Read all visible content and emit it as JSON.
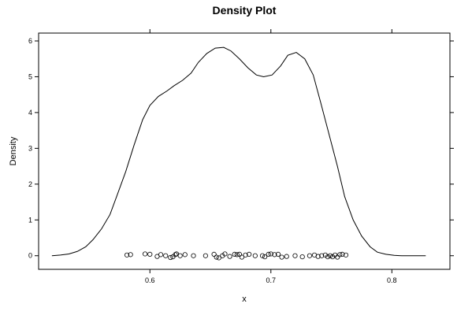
{
  "chart_data": {
    "type": "line",
    "title": "Density Plot",
    "xlabel": "x",
    "ylabel": "Density",
    "xlim": [
      0.508,
      0.848
    ],
    "ylim": [
      -0.38,
      6.22
    ],
    "x_ticks": [
      0.6,
      0.7,
      0.8
    ],
    "x_tick_labels": [
      "0.6",
      "0.7",
      "0.8"
    ],
    "y_ticks": [
      0,
      1,
      2,
      3,
      4,
      5,
      6
    ],
    "y_tick_labels": [
      "0",
      "1",
      "2",
      "3",
      "4",
      "5",
      "6"
    ],
    "grid": false,
    "series": [
      {
        "kind": "density-line",
        "x": [
          0.519,
          0.526,
          0.533,
          0.54,
          0.547,
          0.553,
          0.56,
          0.567,
          0.573,
          0.58,
          0.587,
          0.594,
          0.6,
          0.607,
          0.614,
          0.62,
          0.627,
          0.634,
          0.64,
          0.647,
          0.654,
          0.661,
          0.667,
          0.674,
          0.681,
          0.688,
          0.694,
          0.701,
          0.708,
          0.714,
          0.721,
          0.728,
          0.735,
          0.741,
          0.748,
          0.755,
          0.761,
          0.768,
          0.775,
          0.782,
          0.788,
          0.795,
          0.802,
          0.808,
          0.815,
          0.822,
          0.828
        ],
        "y": [
          0.0,
          0.02,
          0.05,
          0.12,
          0.25,
          0.45,
          0.75,
          1.15,
          1.7,
          2.35,
          3.1,
          3.8,
          4.2,
          4.45,
          4.6,
          4.75,
          4.9,
          5.1,
          5.4,
          5.65,
          5.8,
          5.82,
          5.72,
          5.5,
          5.25,
          5.05,
          5.0,
          5.05,
          5.3,
          5.6,
          5.68,
          5.5,
          5.05,
          4.3,
          3.4,
          2.5,
          1.65,
          1.0,
          0.55,
          0.25,
          0.1,
          0.04,
          0.01,
          0.0,
          0.0,
          0.0,
          0.0
        ]
      },
      {
        "kind": "rug-points",
        "x": [
          0.581,
          0.584,
          0.596,
          0.6,
          0.606,
          0.609,
          0.613,
          0.617,
          0.619,
          0.621,
          0.622,
          0.625,
          0.629,
          0.636,
          0.646,
          0.653,
          0.655,
          0.657,
          0.66,
          0.662,
          0.666,
          0.67,
          0.672,
          0.674,
          0.676,
          0.679,
          0.682,
          0.687,
          0.693,
          0.695,
          0.698,
          0.7,
          0.703,
          0.706,
          0.709,
          0.713,
          0.72,
          0.726,
          0.732,
          0.736,
          0.739,
          0.742,
          0.745,
          0.747,
          0.749,
          0.751,
          0.753,
          0.755,
          0.757,
          0.759,
          0.762
        ],
        "y": [
          0.02,
          0.03,
          0.05,
          0.04,
          -0.02,
          0.03,
          0.0,
          -0.05,
          -0.03,
          0.03,
          0.05,
          0.0,
          0.03,
          0.0,
          0.0,
          0.04,
          -0.04,
          -0.06,
          0.0,
          0.05,
          -0.02,
          0.04,
          0.03,
          0.04,
          -0.04,
          0.02,
          0.04,
          0.0,
          0.0,
          -0.03,
          0.04,
          0.05,
          0.03,
          0.04,
          -0.04,
          -0.02,
          0.0,
          -0.03,
          0.0,
          0.02,
          -0.02,
          0.0,
          0.02,
          -0.03,
          0.0,
          -0.03,
          0.02,
          -0.04,
          0.03,
          0.04,
          0.02
        ]
      }
    ]
  }
}
